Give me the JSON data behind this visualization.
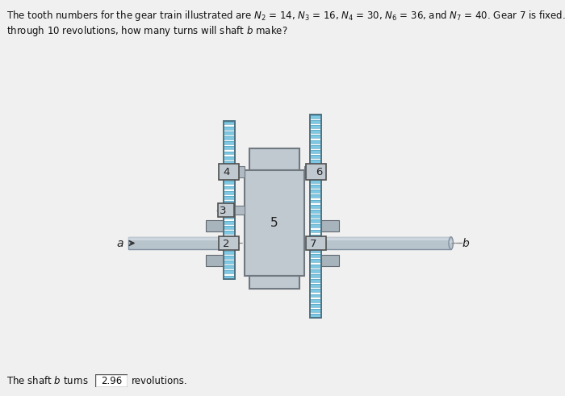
{
  "bg_color": "#f0f0f0",
  "title_line1": "The tooth numbers for the gear train illustrated are N",
  "title_line2": "through 10 revolutions, how many turns will shaft ",
  "title_fontsize": 8.5,
  "answer_text": "The shaft ",
  "answer_value": "2.96",
  "answer_suffix": " revolutions.",
  "answer_fontsize": 8.5,
  "gear_blue_light": "#a8d8ea",
  "gear_blue_mid": "#7ec8e3",
  "gear_blue_dark": "#4a9ab5",
  "gear_stripe_gap": "#c8e8f0",
  "shaft_fill": "#b8c4cc",
  "shaft_edge": "#8090a0",
  "shaft_highlight": "#d8e0e8",
  "body_fill": "#c0c8d0",
  "body_edge": "#707880",
  "hub_fill": "#b0bac2",
  "gray_block": "#a8b4bc",
  "label_color": "#222222",
  "dash_color": "#888888",
  "label_fontsize": 9
}
